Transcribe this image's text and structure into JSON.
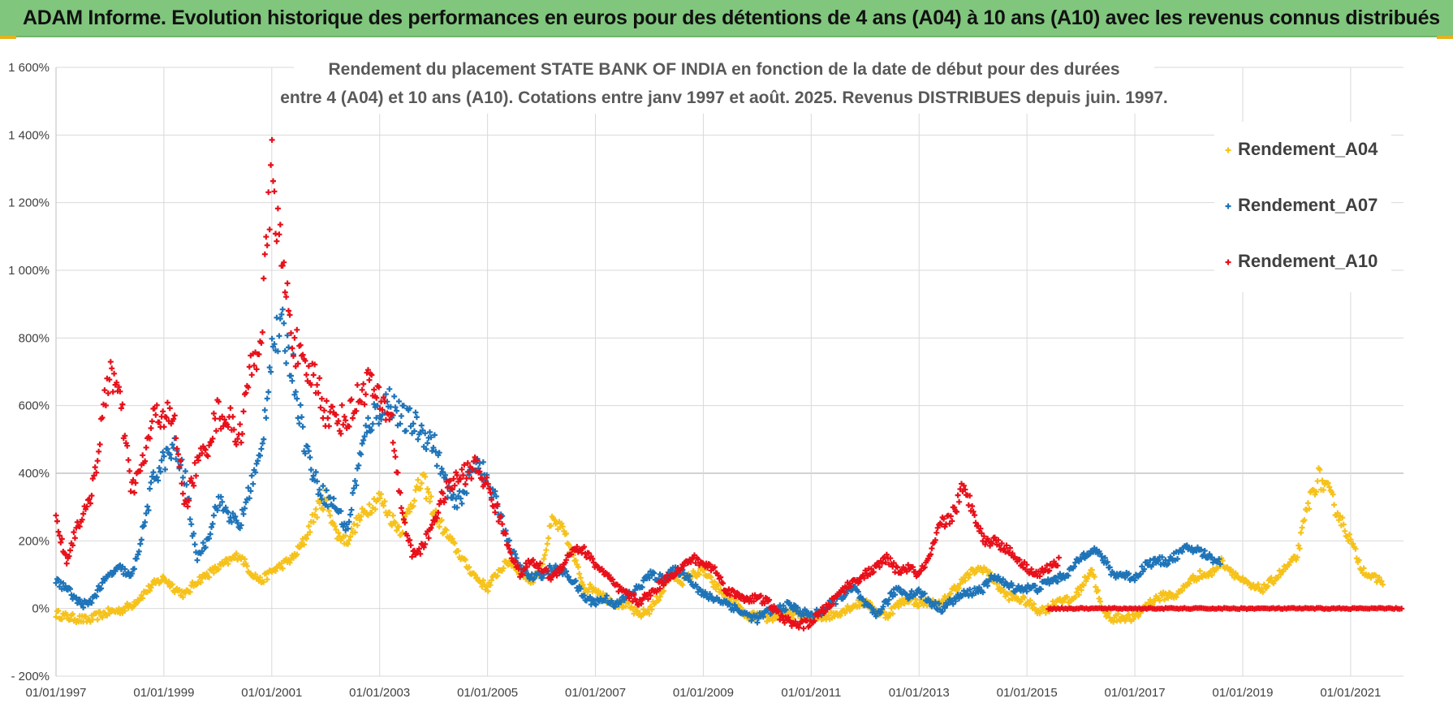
{
  "header": {
    "title": "ADAM Informe. Evolution historique des performances en euros pour des détentions de 4 ans (A04) à 10 ans (A10) avec les revenus connus distribués"
  },
  "chart_data": {
    "type": "scatter",
    "title_line1": "Rendement du placement STATE BANK OF INDIA en fonction de la date de début pour des durées",
    "title_line2": "entre 4 (A04) et 10 ans (A10). Cotations entre janv 1997 et août. 2025. Revenus DISTRIBUES depuis juin. 1997.",
    "xlabel": "",
    "ylabel": "",
    "x_ticks": [
      "01/01/1997",
      "01/01/1999",
      "01/01/2001",
      "01/01/2003",
      "01/01/2005",
      "01/01/2007",
      "01/01/2009",
      "01/01/2011",
      "01/01/2013",
      "01/01/2015",
      "01/01/2017",
      "01/01/2019",
      "01/01/2021"
    ],
    "y_ticks": [
      "- 200%",
      "0%",
      "200%",
      "400%",
      "600%",
      "800%",
      "1 000%",
      "1 200%",
      "1 400%",
      "1 600%"
    ],
    "xlim": [
      1997.0,
      2021.98
    ],
    "ylim": [
      -200,
      1600
    ],
    "grid": true,
    "legend_position": "top-right",
    "colors": {
      "A04": "#f6c21b",
      "A07": "#1f74b8",
      "A10": "#e8101a"
    },
    "series": [
      {
        "name": "Rendement_A04",
        "color": "#f6c21b",
        "x": [
          1997.0,
          1997.2,
          1997.4,
          1997.6,
          1997.8,
          1998.0,
          1998.2,
          1998.4,
          1998.6,
          1998.8,
          1999.0,
          1999.2,
          1999.4,
          1999.6,
          1999.8,
          2000.0,
          2000.2,
          2000.4,
          2000.6,
          2000.8,
          2001.0,
          2001.2,
          2001.4,
          2001.6,
          2001.8,
          2002.0,
          2002.2,
          2002.4,
          2002.6,
          2002.8,
          2003.0,
          2003.2,
          2003.4,
          2003.6,
          2003.8,
          2004.0,
          2004.2,
          2004.4,
          2004.6,
          2004.8,
          2005.0,
          2005.2,
          2005.4,
          2005.6,
          2005.8,
          2006.0,
          2006.2,
          2006.4,
          2006.6,
          2006.8,
          2007.0,
          2007.2,
          2007.4,
          2007.6,
          2007.8,
          2008.0,
          2008.2,
          2008.4,
          2008.6,
          2008.8,
          2009.0,
          2009.2,
          2009.4,
          2009.6,
          2009.8,
          2010.0,
          2010.2,
          2010.4,
          2010.6,
          2010.8,
          2011.0,
          2011.2,
          2011.4,
          2011.6,
          2011.8,
          2012.0,
          2012.2,
          2012.4,
          2012.6,
          2012.8,
          2013.0,
          2013.2,
          2013.4,
          2013.6,
          2013.8,
          2014.0,
          2014.2,
          2014.4,
          2014.6,
          2014.8,
          2015.0,
          2015.2,
          2015.4,
          2015.6,
          2015.8,
          2016.0,
          2016.2,
          2016.4,
          2016.6,
          2016.8,
          2017.0,
          2017.2,
          2017.4,
          2017.6,
          2017.8,
          2018.0,
          2018.2,
          2018.4,
          2018.6,
          2018.8,
          2019.0,
          2019.2,
          2019.4,
          2019.6,
          2019.8,
          2020.0,
          2020.2,
          2020.4,
          2020.6,
          2020.8,
          2021.0,
          2021.2,
          2021.4,
          2021.6
        ],
        "y": [
          -15,
          -25,
          -30,
          -35,
          -20,
          -10,
          -5,
          10,
          40,
          70,
          90,
          60,
          40,
          80,
          100,
          120,
          140,
          160,
          110,
          80,
          110,
          130,
          150,
          200,
          280,
          330,
          220,
          200,
          260,
          300,
          330,
          270,
          230,
          320,
          380,
          290,
          230,
          180,
          130,
          90,
          60,
          110,
          140,
          110,
          80,
          120,
          260,
          230,
          150,
          60,
          60,
          30,
          15,
          10,
          -20,
          -5,
          40,
          100,
          80,
          100,
          110,
          70,
          40,
          15,
          -25,
          -20,
          -30,
          -20,
          -15,
          -20,
          -30,
          -25,
          -20,
          -5,
          10,
          20,
          -10,
          -20,
          10,
          30,
          15,
          20,
          10,
          50,
          80,
          110,
          120,
          80,
          40,
          30,
          20,
          -5,
          0,
          30,
          20,
          60,
          120,
          -10,
          -30,
          -25,
          -30,
          10,
          30,
          40,
          40,
          80,
          100,
          100,
          140,
          110,
          80,
          60,
          60,
          90,
          120,
          150,
          300,
          390,
          340,
          270,
          200,
          120,
          90,
          80
        ],
        "note": ""
      },
      {
        "name": "Rendement_A07",
        "color": "#1f74b8",
        "x": [
          1997.0,
          1997.2,
          1997.4,
          1997.6,
          1997.8,
          1998.0,
          1998.2,
          1998.4,
          1998.6,
          1998.8,
          1999.0,
          1999.2,
          1999.4,
          1999.6,
          1999.8,
          2000.0,
          2000.2,
          2000.4,
          2000.6,
          2000.8,
          2001.0,
          2001.2,
          2001.4,
          2001.6,
          2001.8,
          2002.0,
          2002.2,
          2002.4,
          2002.6,
          2002.8,
          2003.0,
          2003.2,
          2003.4,
          2003.6,
          2003.8,
          2004.0,
          2004.2,
          2004.4,
          2004.6,
          2004.8,
          2005.0,
          2005.2,
          2005.4,
          2005.6,
          2005.8,
          2006.0,
          2006.2,
          2006.4,
          2006.6,
          2006.8,
          2007.0,
          2007.2,
          2007.4,
          2007.6,
          2007.8,
          2008.0,
          2008.2,
          2008.4,
          2008.6,
          2008.8,
          2009.0,
          2009.2,
          2009.4,
          2009.6,
          2009.8,
          2010.0,
          2010.2,
          2010.4,
          2010.6,
          2010.8,
          2011.0,
          2011.2,
          2011.4,
          2011.6,
          2011.8,
          2012.0,
          2012.2,
          2012.4,
          2012.6,
          2012.8,
          2013.0,
          2013.2,
          2013.4,
          2013.6,
          2013.8,
          2014.0,
          2014.2,
          2014.4,
          2014.6,
          2014.8,
          2015.0,
          2015.2,
          2015.4,
          2015.6,
          2015.8,
          2016.0,
          2016.2,
          2016.4,
          2016.6,
          2016.8,
          2017.0,
          2017.2,
          2017.4,
          2017.6,
          2017.8,
          2018.0,
          2018.2,
          2018.4,
          2018.6
        ],
        "y": [
          80,
          60,
          20,
          10,
          60,
          100,
          120,
          90,
          220,
          380,
          440,
          470,
          380,
          150,
          200,
          320,
          280,
          240,
          360,
          450,
          780,
          820,
          700,
          500,
          380,
          330,
          300,
          230,
          420,
          550,
          590,
          620,
          560,
          550,
          520,
          490,
          380,
          300,
          360,
          450,
          370,
          300,
          190,
          120,
          90,
          100,
          120,
          110,
          80,
          30,
          20,
          30,
          10,
          40,
          60,
          100,
          90,
          110,
          110,
          80,
          40,
          30,
          20,
          0,
          -20,
          -30,
          -10,
          0,
          10,
          -10,
          -20,
          -10,
          20,
          40,
          60,
          10,
          -20,
          20,
          60,
          40,
          50,
          20,
          0,
          20,
          40,
          50,
          60,
          100,
          70,
          60,
          60,
          60,
          80,
          90,
          110,
          150,
          180,
          150,
          100,
          100,
          90,
          130,
          140,
          140,
          160,
          180,
          170,
          150,
          140
        ],
        "note": ""
      },
      {
        "name": "Rendement_A10",
        "color": "#e8101a",
        "x": [
          1997.0,
          1997.2,
          1997.4,
          1997.6,
          1997.8,
          1998.0,
          1998.2,
          1998.4,
          1998.6,
          1998.8,
          1999.0,
          1999.2,
          1999.4,
          1999.6,
          1999.8,
          2000.0,
          2000.2,
          2000.4,
          2000.6,
          2000.8,
          2001.0,
          2001.2,
          2001.4,
          2001.6,
          2001.8,
          2002.0,
          2002.2,
          2002.4,
          2002.6,
          2002.8,
          2003.0,
          2003.2,
          2003.4,
          2003.6,
          2003.8,
          2004.0,
          2004.2,
          2004.4,
          2004.6,
          2004.8,
          2005.0,
          2005.2,
          2005.4,
          2005.6,
          2005.8,
          2006.0,
          2006.2,
          2006.4,
          2006.6,
          2006.8,
          2007.0,
          2007.2,
          2007.4,
          2007.6,
          2007.8,
          2008.0,
          2008.2,
          2008.4,
          2008.6,
          2008.8,
          2009.0,
          2009.2,
          2009.4,
          2009.6,
          2009.8,
          2010.0,
          2010.2,
          2010.4,
          2010.6,
          2010.8,
          2011.0,
          2011.2,
          2011.4,
          2011.6,
          2011.8,
          2012.0,
          2012.2,
          2012.4,
          2012.6,
          2012.8,
          2013.0,
          2013.2,
          2013.4,
          2013.6,
          2013.8,
          2014.0,
          2014.2,
          2014.4,
          2014.6,
          2014.8,
          2015.0,
          2015.2,
          2015.4,
          2015.6
        ],
        "y": [
          260,
          140,
          250,
          300,
          480,
          720,
          600,
          350,
          420,
          560,
          580,
          540,
          300,
          420,
          480,
          580,
          560,
          500,
          700,
          800,
          1300,
          1000,
          800,
          690,
          690,
          580,
          560,
          560,
          620,
          680,
          600,
          580,
          300,
          160,
          180,
          260,
          340,
          380,
          400,
          420,
          360,
          280,
          180,
          100,
          140,
          120,
          90,
          130,
          180,
          170,
          130,
          100,
          60,
          40,
          20,
          40,
          70,
          100,
          120,
          150,
          130,
          120,
          60,
          40,
          30,
          30,
          20,
          -20,
          -40,
          -50,
          -40,
          -10,
          20,
          60,
          80,
          100,
          120,
          150,
          110,
          120,
          100,
          150,
          250,
          270,
          350,
          300,
          200,
          200,
          180,
          150,
          120,
          100,
          120,
          140
        ],
        "note": ""
      },
      {
        "name": "Rendement_A10 (plateau)",
        "color": "#e8101a",
        "x_range": [
          2015.4,
          2021.98
        ],
        "y_const": 0
      }
    ]
  },
  "legend": {
    "items": [
      {
        "label": "Rendement_A04",
        "color": "#f6c21b"
      },
      {
        "label": "Rendement_A07",
        "color": "#1f74b8"
      },
      {
        "label": "Rendement_A10",
        "color": "#e8101a"
      }
    ]
  }
}
